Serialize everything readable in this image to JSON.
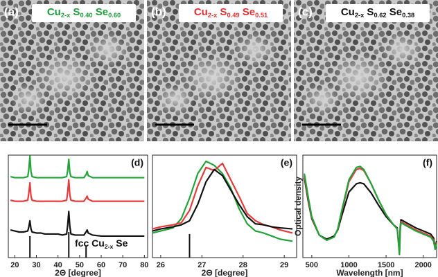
{
  "panels": [
    {
      "label": "(a)",
      "color": "#1f9a3c",
      "formula": [
        {
          "text": "Cu",
          "sub": false
        },
        {
          "text": "2-x",
          "sub": true
        },
        {
          "text": " S",
          "sub": false
        },
        {
          "text": "0.40",
          "sub": true
        },
        {
          "text": " Se",
          "sub": false
        },
        {
          "text": "0.60",
          "sub": true
        }
      ]
    },
    {
      "label": "(b)",
      "color": "#e0302f",
      "formula": [
        {
          "text": "Cu",
          "sub": false
        },
        {
          "text": "2-x",
          "sub": true
        },
        {
          "text": " S",
          "sub": false
        },
        {
          "text": "0.49",
          "sub": true
        },
        {
          "text": " Se",
          "sub": false
        },
        {
          "text": "0.51",
          "sub": true
        }
      ]
    },
    {
      "label": "(c)",
      "color": "#111111",
      "formula": [
        {
          "text": "Cu",
          "sub": false
        },
        {
          "text": "2-x",
          "sub": true
        },
        {
          "text": " S",
          "sub": false
        },
        {
          "text": "0.62",
          "sub": true
        },
        {
          "text": " Se",
          "sub": false
        },
        {
          "text": "0.38",
          "sub": true
        }
      ]
    }
  ],
  "chart_data": [
    {
      "type": "line",
      "label": "(d)",
      "x_label": "2Θ [degree]",
      "xlim": [
        17,
        81.5
      ],
      "ylim": [
        0,
        10
      ],
      "xticks": [
        20,
        30,
        40,
        50,
        60,
        70,
        80
      ],
      "annotation": [
        {
          "text": "fcc Cu",
          "sub": false
        },
        {
          "text": "2-x",
          "sub": true
        },
        {
          "text": " Se",
          "sub": false
        }
      ],
      "x": [
        18,
        20,
        22,
        24,
        26,
        26.5,
        27,
        27.5,
        28,
        30,
        32,
        34,
        36,
        38,
        40,
        42,
        44,
        44.5,
        45,
        45.5,
        46,
        48,
        50,
        52,
        53,
        53.5,
        54,
        56,
        60,
        65,
        70,
        75,
        80
      ],
      "series": [
        {
          "color": "#22a33a",
          "values": [
            7.9,
            7.8,
            7.8,
            7.8,
            7.9,
            8.6,
            9.9,
            8.4,
            7.9,
            7.8,
            7.8,
            7.8,
            7.8,
            7.8,
            7.8,
            7.8,
            7.9,
            8.5,
            9.6,
            8.3,
            7.9,
            7.8,
            7.8,
            7.8,
            8.1,
            8.4,
            8.0,
            7.8,
            7.8,
            7.8,
            7.8,
            7.8,
            7.8
          ]
        },
        {
          "color": "#e43b3b",
          "values": [
            5.6,
            5.5,
            5.5,
            5.5,
            5.6,
            6.3,
            7.3,
            6.0,
            5.6,
            5.5,
            5.5,
            5.5,
            5.5,
            5.5,
            5.5,
            5.5,
            5.6,
            6.4,
            7.6,
            6.1,
            5.6,
            5.5,
            5.5,
            5.5,
            5.8,
            6.0,
            5.7,
            5.5,
            5.5,
            5.5,
            5.5,
            5.5,
            5.5
          ]
        },
        {
          "color": "#111111",
          "values": [
            2.7,
            2.6,
            2.5,
            2.5,
            2.6,
            3.0,
            3.6,
            2.8,
            2.5,
            2.4,
            2.4,
            2.3,
            2.3,
            2.3,
            2.3,
            2.2,
            2.3,
            3.2,
            4.5,
            3.0,
            2.3,
            2.2,
            2.2,
            2.2,
            2.5,
            2.7,
            2.4,
            2.2,
            2.1,
            2.1,
            2.1,
            2.1,
            2.1
          ]
        }
      ],
      "reference": {
        "color": "#111111",
        "x": [
          27,
          45,
          53
        ],
        "values": [
          2.1,
          2.5,
          1.2
        ]
      }
    },
    {
      "type": "line",
      "label": "(e)",
      "x_label": "2Θ [degree]",
      "xlim": [
        25.8,
        29.3
      ],
      "ylim": [
        0,
        10
      ],
      "xticks": [
        26,
        27,
        28,
        29
      ],
      "x": [
        25.8,
        26.0,
        26.3,
        26.5,
        26.7,
        26.9,
        27.1,
        27.3,
        27.5,
        27.7,
        27.9,
        28.1,
        28.3,
        28.5,
        28.7,
        28.9,
        29.2
      ],
      "series": [
        {
          "color": "#22a33a",
          "values": [
            2.4,
            2.6,
            2.9,
            3.8,
            5.8,
            8.2,
            9.4,
            9.0,
            8.2,
            6.8,
            4.8,
            3.3,
            2.6,
            2.4,
            2.1,
            1.8,
            1.6
          ]
        },
        {
          "color": "#e43b3b",
          "values": [
            2.8,
            3.0,
            3.2,
            3.4,
            4.6,
            7.0,
            8.8,
            8.5,
            9.2,
            7.6,
            6.0,
            4.3,
            3.6,
            3.2,
            3.0,
            2.7,
            2.4
          ]
        },
        {
          "color": "#111111",
          "values": [
            2.6,
            2.8,
            3.0,
            3.2,
            3.6,
            5.2,
            7.4,
            8.6,
            8.0,
            6.6,
            5.2,
            4.0,
            3.3,
            3.2,
            3.0,
            2.9,
            2.8
          ]
        }
      ],
      "reference": {
        "color": "#111111",
        "x": [
          26.7
        ],
        "values": [
          2.3
        ]
      }
    },
    {
      "type": "line",
      "label": "(f)",
      "x_label": "Wavelength [nm]",
      "y_label": "Optical density",
      "xlim": [
        380,
        2180
      ],
      "ylim": [
        0,
        10
      ],
      "xticks": [
        500,
        1000,
        1500,
        2000
      ],
      "x": [
        400,
        450,
        500,
        600,
        700,
        800,
        850,
        900,
        1000,
        1100,
        1150,
        1200,
        1300,
        1400,
        1500,
        1600,
        1650,
        1680,
        1690,
        1700,
        1800,
        1900,
        2000,
        2100,
        2140,
        2160,
        2180
      ],
      "series": [
        {
          "color": "#111111",
          "values": [
            7.8,
            5.6,
            3.8,
            2.2,
            1.8,
            2.1,
            2.7,
            4.0,
            6.4,
            7.2,
            7.3,
            7.2,
            6.3,
            5.1,
            4.0,
            3.2,
            2.9,
            0.6,
            2.9,
            3.7,
            3.3,
            2.9,
            2.6,
            2.3,
            1.9,
            1.0,
            1.6
          ]
        },
        {
          "color": "#e43b3b",
          "values": [
            8.0,
            5.8,
            3.9,
            2.2,
            1.7,
            2.0,
            2.8,
            4.4,
            7.4,
            8.6,
            8.7,
            8.5,
            7.2,
            5.6,
            4.2,
            3.2,
            2.8,
            0.4,
            2.7,
            3.5,
            3.1,
            2.7,
            2.4,
            2.1,
            1.7,
            0.9,
            1.5
          ]
        },
        {
          "color": "#22a33a",
          "values": [
            8.2,
            6.0,
            4.0,
            2.2,
            1.7,
            2.0,
            2.8,
            4.5,
            7.6,
            8.8,
            8.9,
            8.6,
            7.2,
            5.6,
            4.2,
            3.2,
            2.8,
            0.3,
            2.6,
            3.4,
            3.0,
            2.6,
            2.3,
            2.0,
            1.6,
            0.8,
            1.4
          ]
        }
      ]
    }
  ]
}
